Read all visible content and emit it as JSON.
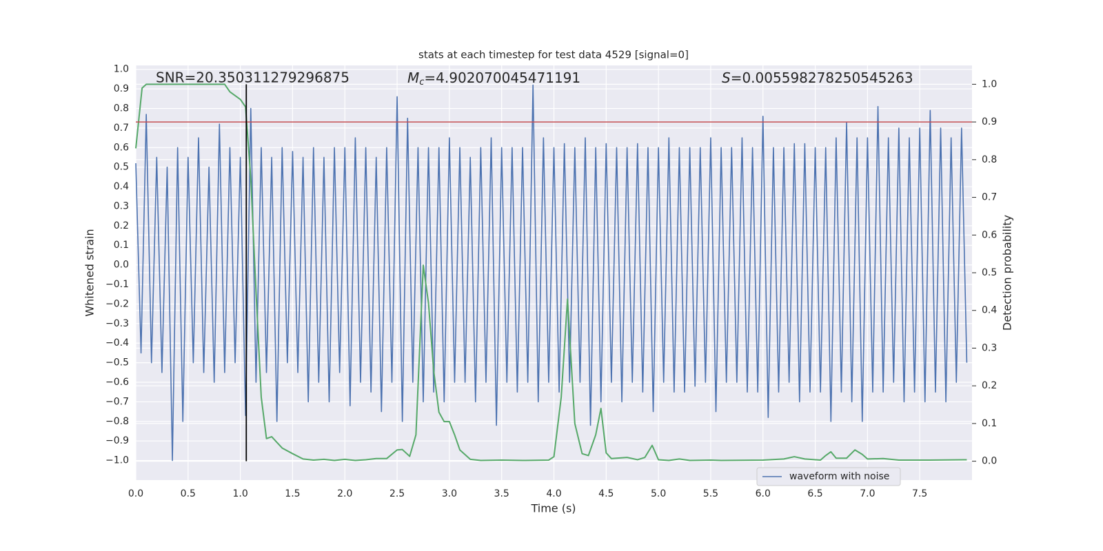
{
  "chart_data": {
    "type": "line",
    "title": "stats at each timestep for test data 4529 [signal=0]",
    "xlabel": "Time (s)",
    "ylabel": "Whitened strain",
    "y2label": "Detection probability",
    "annotations": [
      {
        "text": "SNR=20.350311279296875"
      },
      {
        "symbol": "M",
        "subscript": "c",
        "text": "=4.902070045471191"
      },
      {
        "symbol": "S",
        "text": "=0.005598278250545263"
      }
    ],
    "xlim": [
      0,
      8.0
    ],
    "ylim": [
      -1.1,
      1.02
    ],
    "y2lim": [
      -0.05,
      1.05
    ],
    "grid": true,
    "legend": "lower right",
    "xticks": [
      {
        "value": 0,
        "label": "0.0"
      },
      {
        "value": 0.5,
        "label": "0.5"
      },
      {
        "value": 1,
        "label": "1.0"
      },
      {
        "value": 1.5,
        "label": "1.5"
      },
      {
        "value": 2,
        "label": "2.0"
      },
      {
        "value": 2.5,
        "label": "2.5"
      },
      {
        "value": 3,
        "label": "3.0"
      },
      {
        "value": 3.5,
        "label": "3.5"
      },
      {
        "value": 4,
        "label": "4.0"
      },
      {
        "value": 4.5,
        "label": "4.5"
      },
      {
        "value": 5,
        "label": "5.0"
      },
      {
        "value": 5.5,
        "label": "5.5"
      },
      {
        "value": 6,
        "label": "6.0"
      },
      {
        "value": 6.5,
        "label": "6.5"
      },
      {
        "value": 7,
        "label": "7.0"
      },
      {
        "value": 7.5,
        "label": "7.5"
      }
    ],
    "yticks": [
      {
        "value": -1,
        "label": "−1.0"
      },
      {
        "value": -0.9,
        "label": "−0.9"
      },
      {
        "value": -0.8,
        "label": "−0.8"
      },
      {
        "value": -0.7,
        "label": "−0.7"
      },
      {
        "value": -0.6,
        "label": "−0.6"
      },
      {
        "value": -0.5,
        "label": "−0.5"
      },
      {
        "value": -0.4,
        "label": "−0.4"
      },
      {
        "value": -0.3,
        "label": "−0.3"
      },
      {
        "value": -0.2,
        "label": "−0.2"
      },
      {
        "value": -0.1,
        "label": "−0.1"
      },
      {
        "value": 0,
        "label": "0.0"
      },
      {
        "value": 0.1,
        "label": "0.1"
      },
      {
        "value": 0.2,
        "label": "0.2"
      },
      {
        "value": 0.3,
        "label": "0.3"
      },
      {
        "value": 0.4,
        "label": "0.4"
      },
      {
        "value": 0.5,
        "label": "0.5"
      },
      {
        "value": 0.6,
        "label": "0.6"
      },
      {
        "value": 0.7,
        "label": "0.7"
      },
      {
        "value": 0.8,
        "label": "0.8"
      },
      {
        "value": 0.9,
        "label": "0.9"
      },
      {
        "value": 1,
        "label": "1.0"
      }
    ],
    "y2ticks": [
      {
        "value": 0,
        "label": "0.0"
      },
      {
        "value": 0.1,
        "label": "0.1"
      },
      {
        "value": 0.2,
        "label": "0.2"
      },
      {
        "value": 0.3,
        "label": "0.3"
      },
      {
        "value": 0.4,
        "label": "0.4"
      },
      {
        "value": 0.5,
        "label": "0.5"
      },
      {
        "value": 0.6,
        "label": "0.6"
      },
      {
        "value": 0.7,
        "label": "0.7"
      },
      {
        "value": 0.8,
        "label": "0.8"
      },
      {
        "value": 0.9,
        "label": "0.9"
      },
      {
        "value": 1,
        "label": "1.0"
      }
    ],
    "hlines": [
      {
        "y": 0.9,
        "axis": "y2",
        "color": "#c44e52"
      }
    ],
    "vlines": [
      {
        "x": 1.057,
        "ymin": 0,
        "ymax": 1,
        "axis": "y2",
        "color": "#000000"
      }
    ],
    "series": [
      {
        "name": "waveform with noise",
        "color": "#4c72b0",
        "x": [
          0,
          0.05,
          0.1,
          0.15,
          0.2,
          0.25,
          0.3,
          0.35,
          0.4,
          0.45,
          0.5,
          0.55,
          0.6,
          0.65,
          0.7,
          0.75,
          0.8,
          0.85,
          0.9,
          0.95,
          1,
          1.05,
          1.1,
          1.15,
          1.2,
          1.25,
          1.3,
          1.35,
          1.4,
          1.45,
          1.5,
          1.55,
          1.6,
          1.65,
          1.7,
          1.75,
          1.8,
          1.85,
          1.9,
          1.95,
          2,
          2.05,
          2.1,
          2.15,
          2.2,
          2.25,
          2.3,
          2.35,
          2.4,
          2.45,
          2.5,
          2.55,
          2.6,
          2.65,
          2.7,
          2.75,
          2.8,
          2.85,
          2.9,
          2.95,
          3,
          3.05,
          3.1,
          3.15,
          3.2,
          3.25,
          3.3,
          3.35,
          3.4,
          3.45,
          3.5,
          3.55,
          3.6,
          3.65,
          3.7,
          3.75,
          3.8,
          3.85,
          3.9,
          3.95,
          4,
          4.05,
          4.1,
          4.15,
          4.2,
          4.25,
          4.3,
          4.35,
          4.4,
          4.45,
          4.5,
          4.55,
          4.6,
          4.65,
          4.7,
          4.75,
          4.8,
          4.85,
          4.9,
          4.95,
          5,
          5.05,
          5.1,
          5.15,
          5.2,
          5.25,
          5.3,
          5.35,
          5.4,
          5.45,
          5.5,
          5.55,
          5.6,
          5.65,
          5.7,
          5.75,
          5.8,
          5.85,
          5.9,
          5.95,
          6,
          6.05,
          6.1,
          6.15,
          6.2,
          6.25,
          6.3,
          6.35,
          6.4,
          6.45,
          6.5,
          6.55,
          6.6,
          6.65,
          6.7,
          6.75,
          6.8,
          6.85,
          6.9,
          6.95,
          7,
          7.05,
          7.1,
          7.15,
          7.2,
          7.25,
          7.3,
          7.35,
          7.4,
          7.45,
          7.5,
          7.55,
          7.6,
          7.65,
          7.7,
          7.75,
          7.8,
          7.85,
          7.9,
          7.95
        ],
        "values": [
          0.52,
          -0.45,
          0.77,
          -0.5,
          0.55,
          -0.55,
          0.5,
          -1.0,
          0.6,
          -0.8,
          0.55,
          -0.5,
          0.65,
          -0.55,
          0.5,
          -0.6,
          0.72,
          -0.55,
          0.6,
          -0.5,
          0.55,
          -0.77,
          0.8,
          -0.6,
          0.6,
          -0.55,
          0.55,
          -0.8,
          0.6,
          -0.5,
          0.58,
          -0.55,
          0.55,
          -0.7,
          0.6,
          -0.6,
          0.55,
          -0.7,
          0.6,
          -0.55,
          0.6,
          -0.72,
          0.65,
          -0.6,
          0.6,
          -0.65,
          0.55,
          -0.75,
          0.6,
          -0.6,
          0.86,
          -0.8,
          0.75,
          -0.6,
          0.6,
          -0.7,
          0.6,
          -0.65,
          0.6,
          -0.7,
          0.65,
          -0.6,
          0.6,
          -0.6,
          0.55,
          -0.7,
          0.6,
          -0.6,
          0.65,
          -0.82,
          0.6,
          -0.6,
          0.6,
          -0.65,
          0.6,
          -0.6,
          0.92,
          -0.7,
          0.65,
          -0.6,
          0.6,
          -0.65,
          0.62,
          -0.6,
          0.6,
          -0.6,
          0.65,
          -0.82,
          0.6,
          -0.7,
          0.62,
          -0.6,
          0.6,
          -0.7,
          0.6,
          -0.6,
          0.62,
          -0.65,
          0.6,
          -0.75,
          0.6,
          -0.6,
          0.65,
          -0.65,
          0.6,
          -0.65,
          0.6,
          -0.62,
          0.6,
          -0.6,
          0.65,
          -0.75,
          0.6,
          -0.6,
          0.6,
          -0.6,
          0.65,
          -0.65,
          0.6,
          -0.65,
          0.76,
          -0.78,
          0.6,
          -0.65,
          0.6,
          -0.6,
          0.62,
          -0.7,
          0.62,
          -0.65,
          0.6,
          -0.65,
          0.6,
          -0.8,
          0.65,
          -0.65,
          0.73,
          -0.7,
          0.65,
          -0.8,
          0.65,
          -0.65,
          0.81,
          -0.65,
          0.65,
          -0.6,
          0.7,
          -0.7,
          0.65,
          -0.65,
          0.7,
          -0.7,
          0.79,
          -0.65,
          0.7,
          -0.7,
          0.65,
          -0.6,
          0.7,
          -0.5
        ]
      },
      {
        "color": "#55a868",
        "axis": "y2",
        "x": [
          0,
          0.06,
          0.1,
          0.85,
          0.9,
          0.95,
          1.0,
          1.05,
          1.1,
          1.15,
          1.2,
          1.25,
          1.3,
          1.35,
          1.4,
          1.5,
          1.6,
          1.7,
          1.8,
          1.9,
          2.0,
          2.1,
          2.2,
          2.3,
          2.4,
          2.5,
          2.55,
          2.62,
          2.68,
          2.75,
          2.8,
          2.85,
          2.9,
          2.95,
          3.0,
          3.05,
          3.1,
          3.2,
          3.3,
          3.5,
          3.7,
          3.95,
          4.0,
          4.07,
          4.13,
          4.2,
          4.27,
          4.33,
          4.4,
          4.45,
          4.5,
          4.55,
          4.7,
          4.8,
          4.87,
          4.94,
          5.0,
          5.1,
          5.2,
          5.3,
          5.5,
          5.6,
          6.0,
          6.2,
          6.3,
          6.4,
          6.55,
          6.6,
          6.65,
          6.7,
          6.8,
          6.88,
          6.95,
          7.0,
          7.15,
          7.3,
          7.6,
          7.95
        ],
        "values": [
          0.83,
          0.99,
          1.0,
          1.0,
          0.98,
          0.97,
          0.96,
          0.94,
          0.75,
          0.45,
          0.17,
          0.06,
          0.065,
          0.05,
          0.035,
          0.02,
          0.006,
          0.003,
          0.005,
          0.002,
          0.005,
          0.002,
          0.004,
          0.007,
          0.007,
          0.03,
          0.031,
          0.013,
          0.07,
          0.52,
          0.42,
          0.24,
          0.13,
          0.105,
          0.105,
          0.07,
          0.03,
          0.005,
          0.002,
          0.003,
          0.002,
          0.003,
          0.012,
          0.17,
          0.43,
          0.1,
          0.02,
          0.015,
          0.07,
          0.14,
          0.022,
          0.007,
          0.01,
          0.004,
          0.01,
          0.042,
          0.004,
          0.002,
          0.006,
          0.002,
          0.003,
          0.002,
          0.003,
          0.006,
          0.012,
          0.006,
          0.003,
          0.015,
          0.025,
          0.008,
          0.008,
          0.03,
          0.018,
          0.006,
          0.007,
          0.003,
          0.003,
          0.004
        ]
      }
    ]
  }
}
